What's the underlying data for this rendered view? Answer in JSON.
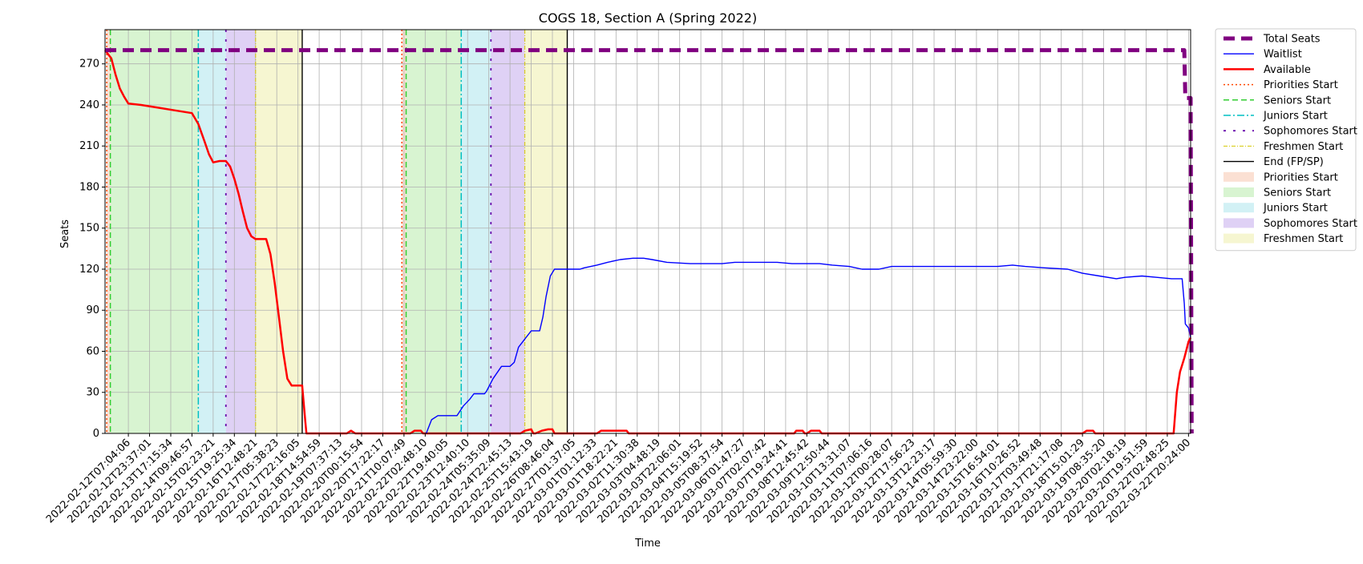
{
  "chart_data": {
    "type": "line",
    "title": "COGS 18, Section A (Spring 2022)",
    "xlabel": "Time",
    "ylabel": "Seats",
    "ylim": [
      0,
      295
    ],
    "yticks": [
      0,
      30,
      60,
      90,
      120,
      150,
      180,
      210,
      240,
      270
    ],
    "grid": true,
    "legend_placement": "outside-upper-right",
    "xtick_labels": [
      "2022-02-12T07:04:06",
      "2022-02-12T23:37:01",
      "2022-02-13T17:15:34",
      "2022-02-14T09:46:57",
      "2022-02-15T02:23:21",
      "2022-02-15T19:25:34",
      "2022-02-16T12:48:21",
      "2022-02-17T05:38:23",
      "2022-02-17T22:16:05",
      "2022-02-18T14:54:59",
      "2022-02-19T07:37:13",
      "2022-02-20T00:15:54",
      "2022-02-20T17:22:17",
      "2022-02-21T10:07:49",
      "2022-02-22T02:48:10",
      "2022-02-22T19:40:05",
      "2022-02-23T12:40:10",
      "2022-02-24T05:35:09",
      "2022-02-24T22:45:13",
      "2022-02-25T15:43:19",
      "2022-02-26T08:46:04",
      "2022-02-27T01:37:05",
      "2022-03-01T01:12:33",
      "2022-03-01T18:22:21",
      "2022-03-02T11:30:38",
      "2022-03-03T04:48:19",
      "2022-03-03T22:06:01",
      "2022-03-04T15:19:52",
      "2022-03-05T08:37:54",
      "2022-03-06T01:47:27",
      "2022-03-07T02:07:42",
      "2022-03-07T19:24:41",
      "2022-03-08T12:45:42",
      "2022-03-09T12:50:44",
      "2022-03-10T13:31:07",
      "2022-03-11T07:06:16",
      "2022-03-12T00:28:07",
      "2022-03-12T17:56:23",
      "2022-03-13T12:23:17",
      "2022-03-14T05:59:30",
      "2022-03-14T23:22:00",
      "2022-03-15T16:54:01",
      "2022-03-16T10:26:52",
      "2022-03-17T03:49:48",
      "2022-03-17T21:17:08",
      "2022-03-18T15:01:29",
      "2022-03-19T08:35:20",
      "2022-03-20T02:18:19",
      "2022-03-20T19:51:59",
      "2022-03-22T02:48:25",
      "2022-03-22T20:24:00"
    ],
    "x_range_ticks": [
      -1.1,
      50.1
    ],
    "series": [
      {
        "name": "Total Seats",
        "color": "#800080",
        "style": "dashed-thick",
        "points": [
          [
            -1.1,
            280
          ],
          [
            49.8,
            280
          ],
          [
            49.85,
            245
          ],
          [
            50.1,
            245
          ],
          [
            50.15,
            0
          ]
        ]
      },
      {
        "name": "Waitlist",
        "color": "#0000ff",
        "style": "solid",
        "points": [
          [
            14.05,
            0
          ],
          [
            14.3,
            10
          ],
          [
            14.6,
            13
          ],
          [
            15.5,
            13
          ],
          [
            15.8,
            20
          ],
          [
            16.1,
            25
          ],
          [
            16.3,
            29
          ],
          [
            16.8,
            29
          ],
          [
            16.9,
            31
          ],
          [
            17.2,
            40
          ],
          [
            17.6,
            49
          ],
          [
            18.0,
            49
          ],
          [
            18.2,
            52
          ],
          [
            18.4,
            63
          ],
          [
            18.8,
            71
          ],
          [
            19.0,
            75
          ],
          [
            19.4,
            75
          ],
          [
            19.55,
            85
          ],
          [
            19.7,
            100
          ],
          [
            19.9,
            115
          ],
          [
            20.1,
            120
          ],
          [
            21.3,
            120
          ],
          [
            21.5,
            121
          ],
          [
            22.1,
            123
          ],
          [
            22.6,
            125
          ],
          [
            23.2,
            127
          ],
          [
            23.8,
            128
          ],
          [
            24.3,
            128
          ],
          [
            24.7,
            127
          ],
          [
            25.4,
            125
          ],
          [
            26.5,
            124
          ],
          [
            28.0,
            124
          ],
          [
            28.6,
            125
          ],
          [
            30.6,
            125
          ],
          [
            31.3,
            124
          ],
          [
            32.6,
            124
          ],
          [
            33.2,
            123
          ],
          [
            34.0,
            122
          ],
          [
            34.6,
            120
          ],
          [
            35.4,
            120
          ],
          [
            36.0,
            122
          ],
          [
            37.5,
            122
          ],
          [
            41.0,
            122
          ],
          [
            41.7,
            123
          ],
          [
            42.3,
            122
          ],
          [
            43.2,
            121
          ],
          [
            44.3,
            120
          ],
          [
            45.0,
            117
          ],
          [
            45.8,
            115
          ],
          [
            46.6,
            113
          ],
          [
            47.0,
            114
          ],
          [
            47.8,
            115
          ],
          [
            48.5,
            114
          ],
          [
            49.2,
            113
          ],
          [
            49.7,
            113
          ],
          [
            49.8,
            95
          ],
          [
            49.85,
            80
          ],
          [
            50.0,
            77
          ],
          [
            50.1,
            70
          ]
        ]
      },
      {
        "name": "Available",
        "color": "#ff0000",
        "style": "solid-thick",
        "points": [
          [
            -1.1,
            280
          ],
          [
            -0.8,
            274
          ],
          [
            -0.6,
            262
          ],
          [
            -0.4,
            252
          ],
          [
            -0.2,
            246
          ],
          [
            0.0,
            241
          ],
          [
            0.6,
            240
          ],
          [
            1.4,
            238
          ],
          [
            2.2,
            236
          ],
          [
            3.0,
            234
          ],
          [
            3.3,
            226
          ],
          [
            3.6,
            213
          ],
          [
            3.8,
            204
          ],
          [
            4.0,
            198
          ],
          [
            4.3,
            199
          ],
          [
            4.6,
            199
          ],
          [
            4.8,
            195
          ],
          [
            5.0,
            186
          ],
          [
            5.2,
            175
          ],
          [
            5.4,
            162
          ],
          [
            5.6,
            150
          ],
          [
            5.8,
            144
          ],
          [
            6.0,
            142
          ],
          [
            6.5,
            142
          ],
          [
            6.7,
            131
          ],
          [
            6.9,
            110
          ],
          [
            7.1,
            85
          ],
          [
            7.3,
            60
          ],
          [
            7.5,
            40
          ],
          [
            7.7,
            35
          ],
          [
            8.2,
            35
          ],
          [
            8.35,
            8
          ],
          [
            8.4,
            0
          ],
          [
            10.3,
            0
          ],
          [
            10.5,
            2
          ],
          [
            10.7,
            0
          ],
          [
            13.3,
            0
          ],
          [
            13.5,
            2
          ],
          [
            13.8,
            2
          ],
          [
            13.9,
            0
          ],
          [
            18.5,
            0
          ],
          [
            18.7,
            2
          ],
          [
            19.0,
            3
          ],
          [
            19.1,
            0
          ],
          [
            19.2,
            0
          ],
          [
            19.5,
            2
          ],
          [
            19.8,
            3
          ],
          [
            20.0,
            3
          ],
          [
            20.1,
            0
          ],
          [
            22.1,
            0
          ],
          [
            22.3,
            2
          ],
          [
            23.5,
            2
          ],
          [
            23.6,
            0
          ],
          [
            31.4,
            0
          ],
          [
            31.5,
            2
          ],
          [
            31.8,
            2
          ],
          [
            31.9,
            0
          ],
          [
            32.0,
            0
          ],
          [
            32.2,
            2
          ],
          [
            32.6,
            2
          ],
          [
            32.7,
            0
          ],
          [
            45.0,
            0
          ],
          [
            45.2,
            2
          ],
          [
            45.5,
            2
          ],
          [
            45.6,
            0
          ],
          [
            49.3,
            0
          ],
          [
            49.45,
            30
          ],
          [
            49.6,
            45
          ],
          [
            49.8,
            55
          ],
          [
            50.0,
            67
          ],
          [
            50.1,
            70
          ]
        ]
      }
    ],
    "vertical_lines": [
      {
        "name": "Priorities Start",
        "color": "#ff4500",
        "style": "dotted",
        "x": [
          -1.02,
          12.9
        ]
      },
      {
        "name": "Seniors Start",
        "color": "#32cd32",
        "style": "dashed",
        "x": [
          -0.85,
          13.1
        ]
      },
      {
        "name": "Juniors Start",
        "color": "#00bfc4",
        "style": "dashdot",
        "x": [
          3.3,
          15.7
        ]
      },
      {
        "name": "Sophomores Start",
        "color": "#6a0dad",
        "style": "loosedot",
        "x": [
          4.6,
          17.1
        ]
      },
      {
        "name": "Freshmen Start",
        "color": "#d4c800",
        "style": "dashdot-thin",
        "x": [
          6.0,
          18.7
        ]
      },
      {
        "name": "End (FP/SP)",
        "color": "#000000",
        "style": "solid",
        "x": [
          8.2,
          20.7
        ]
      }
    ],
    "shaded_regions": [
      {
        "name": "Priorities Start",
        "color": "#f4a582",
        "opacity": 0.35,
        "ranges": [
          [
            -1.02,
            -0.85
          ],
          [
            12.9,
            13.1
          ]
        ]
      },
      {
        "name": "Seniors Start",
        "color": "#8fdf7a",
        "opacity": 0.35,
        "ranges": [
          [
            -0.85,
            3.3
          ],
          [
            13.1,
            15.7
          ]
        ]
      },
      {
        "name": "Juniors Start",
        "color": "#7fd8e3",
        "opacity": 0.35,
        "ranges": [
          [
            3.3,
            4.6
          ],
          [
            15.7,
            17.1
          ]
        ]
      },
      {
        "name": "Sophomores Start",
        "color": "#b08be6",
        "opacity": 0.4,
        "ranges": [
          [
            4.6,
            6.0
          ],
          [
            17.1,
            18.7
          ]
        ]
      },
      {
        "name": "Freshmen Start",
        "color": "#ecec9a",
        "opacity": 0.45,
        "ranges": [
          [
            6.0,
            8.2
          ],
          [
            18.7,
            20.7
          ]
        ]
      }
    ],
    "legend": [
      {
        "label": "Total Seats",
        "kind": "line",
        "color": "#800080",
        "style": "dashed-thick"
      },
      {
        "label": "Waitlist",
        "kind": "line",
        "color": "#0000ff",
        "style": "solid"
      },
      {
        "label": "Available",
        "kind": "line",
        "color": "#ff0000",
        "style": "solid-thick"
      },
      {
        "label": "Priorities Start",
        "kind": "line",
        "color": "#ff4500",
        "style": "dotted"
      },
      {
        "label": "Seniors Start",
        "kind": "line",
        "color": "#32cd32",
        "style": "dashed"
      },
      {
        "label": "Juniors Start",
        "kind": "line",
        "color": "#00bfc4",
        "style": "dashdot"
      },
      {
        "label": "Sophomores Start",
        "kind": "line",
        "color": "#6a0dad",
        "style": "loosedot"
      },
      {
        "label": "Freshmen Start",
        "kind": "line",
        "color": "#d4c800",
        "style": "dashdot-thin"
      },
      {
        "label": "End (FP/SP)",
        "kind": "line",
        "color": "#000000",
        "style": "solid"
      },
      {
        "label": "Priorities Start",
        "kind": "patch",
        "color": "#f4a582",
        "opacity": 0.35
      },
      {
        "label": "Seniors Start",
        "kind": "patch",
        "color": "#8fdf7a",
        "opacity": 0.35
      },
      {
        "label": "Juniors Start",
        "kind": "patch",
        "color": "#7fd8e3",
        "opacity": 0.35
      },
      {
        "label": "Sophomores Start",
        "kind": "patch",
        "color": "#b08be6",
        "opacity": 0.4
      },
      {
        "label": "Freshmen Start",
        "kind": "patch",
        "color": "#ecec9a",
        "opacity": 0.45
      }
    ]
  }
}
